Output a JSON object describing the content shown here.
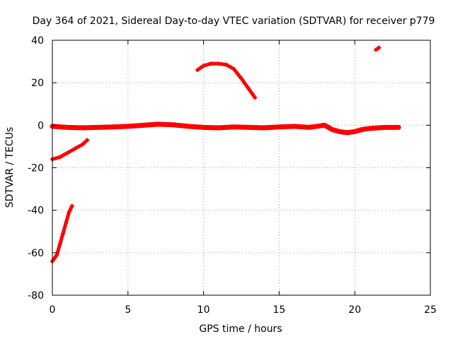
{
  "chart_data": {
    "type": "scatter",
    "title": "Day 364 of 2021, Sidereal Day-to-day VTEC variation (SDTVAR) for receiver p779",
    "xlabel": "GPS time / hours",
    "ylabel": "SDTVAR / TECUs",
    "xlim": [
      0,
      25
    ],
    "ylim": [
      -80,
      40
    ],
    "xticks": [
      0,
      5,
      10,
      15,
      20,
      25
    ],
    "yticks": [
      -80,
      -60,
      -40,
      -20,
      0,
      20,
      40
    ],
    "grid": true,
    "series_color": "#ff0000",
    "series": [
      {
        "name": "steep-descent-arc",
        "points": [
          [
            0.0,
            -64
          ],
          [
            0.3,
            -61
          ],
          [
            0.5,
            -56
          ],
          [
            0.7,
            -51
          ],
          [
            0.9,
            -46
          ],
          [
            1.1,
            -41
          ],
          [
            1.3,
            -38
          ]
        ]
      },
      {
        "name": "low-rising-arc",
        "points": [
          [
            0.0,
            -16
          ],
          [
            0.5,
            -15
          ],
          [
            1.0,
            -13
          ],
          [
            1.5,
            -11
          ],
          [
            2.0,
            -9
          ],
          [
            2.3,
            -7
          ]
        ]
      },
      {
        "name": "main-band",
        "points": [
          [
            0.0,
            -0.5
          ],
          [
            1.0,
            -1
          ],
          [
            2.0,
            -1.2
          ],
          [
            3.0,
            -1
          ],
          [
            4.0,
            -0.8
          ],
          [
            5.0,
            -0.5
          ],
          [
            6.0,
            0
          ],
          [
            7.0,
            0.5
          ],
          [
            8.0,
            0.2
          ],
          [
            9.0,
            -0.5
          ],
          [
            10.0,
            -1
          ],
          [
            11.0,
            -1.2
          ],
          [
            12.0,
            -0.8
          ],
          [
            13.0,
            -1
          ],
          [
            14.0,
            -1.2
          ],
          [
            15.0,
            -0.8
          ],
          [
            16.0,
            -0.5
          ],
          [
            17.0,
            -1
          ],
          [
            18.0,
            0
          ],
          [
            18.5,
            -2
          ],
          [
            19.0,
            -3
          ],
          [
            19.5,
            -3.5
          ],
          [
            20.0,
            -3
          ],
          [
            20.5,
            -2
          ],
          [
            21.0,
            -1.5
          ],
          [
            22.0,
            -1
          ],
          [
            22.9,
            -1
          ]
        ]
      },
      {
        "name": "high-arc",
        "points": [
          [
            9.6,
            26
          ],
          [
            10.0,
            28
          ],
          [
            10.5,
            29
          ],
          [
            11.0,
            29
          ],
          [
            11.5,
            28.5
          ],
          [
            12.0,
            26.5
          ],
          [
            12.5,
            22
          ],
          [
            13.0,
            17
          ],
          [
            13.4,
            13
          ]
        ]
      },
      {
        "name": "outlier",
        "points": [
          [
            21.4,
            35.5
          ],
          [
            21.6,
            36.5
          ]
        ]
      }
    ]
  }
}
